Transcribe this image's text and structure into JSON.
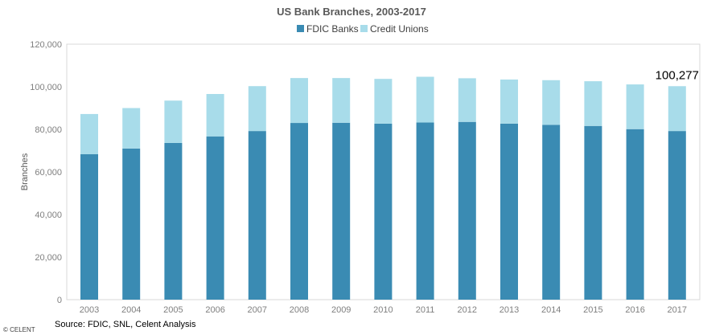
{
  "chart_data": {
    "type": "bar",
    "stacked": true,
    "title": "US Bank Branches, 2003-2017",
    "ylabel": "Branches",
    "xlabel": "",
    "ylim": [
      0,
      120000
    ],
    "yticks": [
      0,
      20000,
      40000,
      60000,
      80000,
      100000,
      120000
    ],
    "ytick_labels": [
      "0",
      "20,000",
      "40,000",
      "60,000",
      "80,000",
      "100,000",
      "120,000"
    ],
    "categories": [
      "2003",
      "2004",
      "2005",
      "2006",
      "2007",
      "2008",
      "2009",
      "2010",
      "2011",
      "2012",
      "2013",
      "2014",
      "2015",
      "2016",
      "2017"
    ],
    "series": [
      {
        "name": "FDIC Banks",
        "color": "#3a8bb3",
        "values": [
          68300,
          71000,
          73600,
          76700,
          79200,
          83000,
          83100,
          82700,
          83200,
          83500,
          82700,
          82100,
          81600,
          80100,
          79200
        ]
      },
      {
        "name": "Credit Unions",
        "color": "#a8dcea",
        "values": [
          18900,
          19000,
          19900,
          19900,
          21100,
          21100,
          21000,
          21000,
          21500,
          20500,
          20700,
          21000,
          21000,
          21000,
          21077
        ]
      }
    ],
    "legend_position": "top",
    "grid": false,
    "annotations": [
      {
        "category": "2017",
        "text": "100,277"
      }
    ]
  },
  "footer": {
    "source": "Source: FDIC, SNL, Celent Analysis",
    "copyright": "© CELENT"
  }
}
